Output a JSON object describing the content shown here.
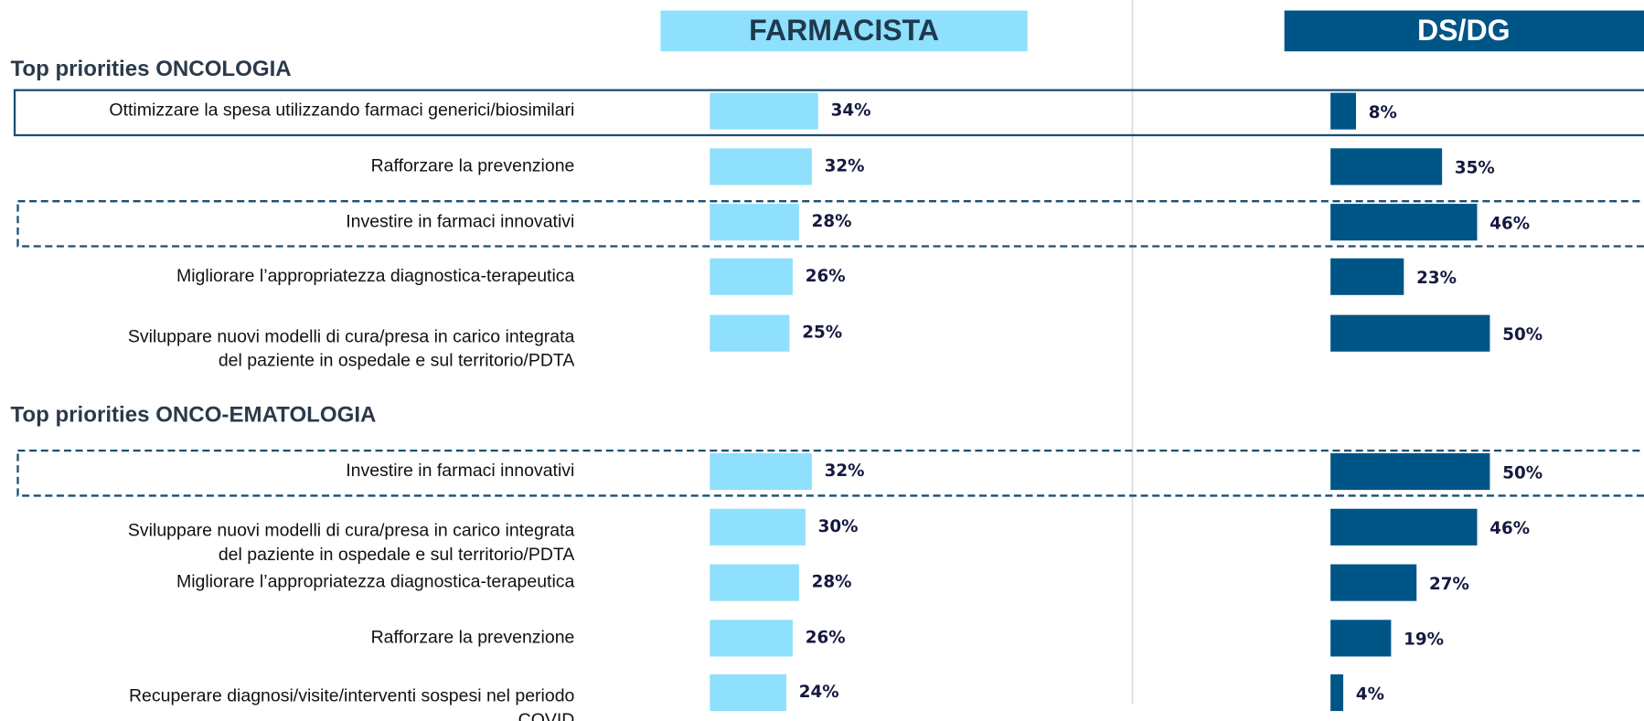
{
  "chart_data": [
    {
      "type": "bar",
      "orientation": "horizontal",
      "title": "Top priorities ONCOLOGIA",
      "categories": [
        "Ottimizzare la spesa utilizzando farmaci generici/biosimilari",
        "Rafforzare la prevenzione",
        "Investire in farmaci innovativi",
        "Migliorare l’appropriatezza diagnostica-terapeutica",
        "Sviluppare nuovi modelli di cura/presa in carico integrata\ndel paziente in ospedale e sul territorio/PDTA"
      ],
      "highlight_styles": [
        "solid",
        null,
        "dashed",
        null,
        null
      ],
      "series": [
        {
          "name": "FARMACISTA",
          "color": "#8fe0fc",
          "values": [
            34,
            32,
            28,
            26,
            25
          ],
          "value_labels": [
            "34%",
            "32%",
            "28%",
            "26%",
            "25%"
          ]
        },
        {
          "name": "DS/DG",
          "color": "#005587",
          "values": [
            8,
            35,
            46,
            23,
            50
          ],
          "value_labels": [
            "8%",
            "35%",
            "46%",
            "23%",
            "50%"
          ]
        }
      ]
    },
    {
      "type": "bar",
      "orientation": "horizontal",
      "title": "Top priorities ONCO-EMATOLOGIA",
      "categories": [
        "Investire in farmaci innovativi",
        "Sviluppare nuovi modelli di cura/presa in carico integrata\ndel paziente in ospedale e sul territorio/PDTA",
        "Migliorare l’appropriatezza diagnostica-terapeutica",
        "Rafforzare la prevenzione",
        "Recuperare diagnosi/visite/interventi sospesi nel periodo\nCOVID"
      ],
      "highlight_styles": [
        "dashed",
        null,
        null,
        null,
        null
      ],
      "series": [
        {
          "color": "#8fe0fc",
          "values": [
            32,
            30,
            28,
            26,
            24
          ],
          "value_labels": [
            "32%",
            "30%",
            "28%",
            "26%",
            "24%"
          ]
        },
        {
          "color": "#005587",
          "values": [
            50,
            46,
            27,
            19,
            4
          ],
          "value_labels": [
            "50%",
            "46%",
            "27%",
            "19%",
            "4%"
          ]
        }
      ]
    }
  ]
}
